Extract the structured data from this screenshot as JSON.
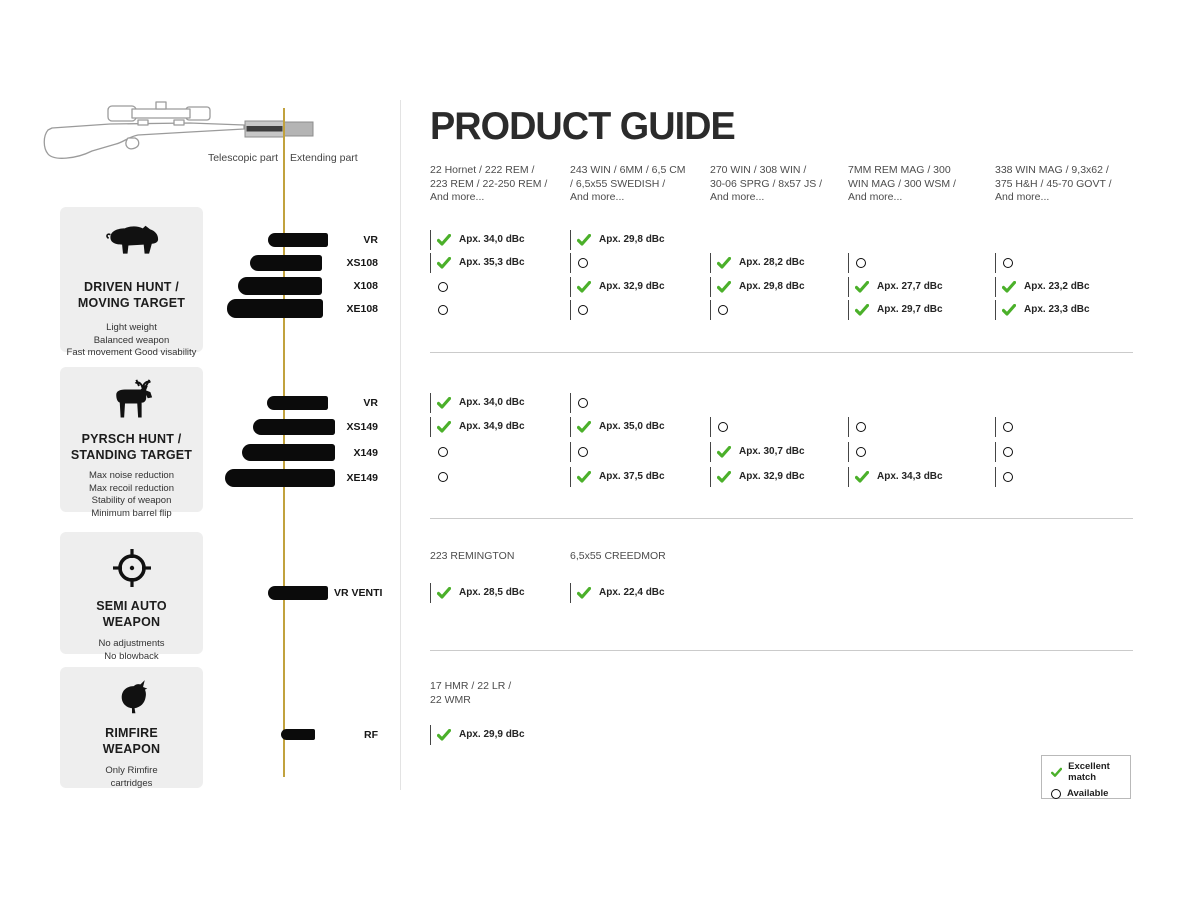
{
  "page": {
    "title": "PRODUCT GUIDE"
  },
  "colors": {
    "accent_green": "#4bb02a",
    "gold_line": "#c1a23e",
    "bar_black": "#0b0b0b",
    "card_bg": "#eeeeee"
  },
  "rifle": {
    "telescopic_label": "Telescopic part",
    "extending_label": "Extending part"
  },
  "cards": [
    {
      "icon": "boar-icon",
      "title": "DRIVEN HUNT /\nMOVING TARGET",
      "desc": "Light weight\nBalanced weapon\nFast movement Good visability"
    },
    {
      "icon": "moose-icon",
      "title": "PYRSCH HUNT /\nSTANDING TARGET",
      "desc": "Max noise reduction\nMax recoil reduction\nStability of weapon\nMinimum barrel flip"
    },
    {
      "icon": "crosshair-icon",
      "title": "SEMI AUTO\nWEAPON",
      "desc": "No adjustments\nNo blowback"
    },
    {
      "icon": "grouse-icon",
      "title": "RIMFIRE\nWEAPON",
      "desc": "Only Rimfire\ncartridges"
    }
  ],
  "table": {
    "caliber_headers": [
      "22 Hornet / 222 REM /\n223 REM / 22-250 REM /\nAnd more...",
      "243 WIN / 6MM / 6,5 CM\n/ 6,5x55 SWEDISH /\nAnd more...",
      "270 WIN / 308 WIN /\n30-06 SPRG / 8x57 JS /\nAnd more...",
      "7MM REM MAG / 300\nWIN MAG / 300 WSM /\nAnd more...",
      "338 WIN MAG / 9,3x62 /\n375 H&H / 45-70 GOVT /\nAnd more..."
    ],
    "sections": [
      {
        "models": [
          "VR",
          "XS108",
          "X108",
          "XE108"
        ],
        "cells": [
          [
            {
              "type": "check",
              "value": "Apx. 34,0 dBc"
            },
            {
              "type": "check",
              "value": "Apx. 35,3 dBc"
            },
            {
              "type": "circle",
              "value": ""
            },
            {
              "type": "circle",
              "value": ""
            }
          ],
          [
            {
              "type": "check",
              "value": "Apx. 29,8 dBc"
            },
            {
              "type": "circle",
              "value": ""
            },
            {
              "type": "check",
              "value": "Apx. 32,9 dBc"
            },
            {
              "type": "circle",
              "value": ""
            }
          ],
          [
            {
              "type": "none",
              "value": ""
            },
            {
              "type": "check",
              "value": "Apx. 28,2 dBc"
            },
            {
              "type": "check",
              "value": "Apx. 29,8 dBc"
            },
            {
              "type": "circle",
              "value": ""
            }
          ],
          [
            {
              "type": "none",
              "value": ""
            },
            {
              "type": "circle",
              "value": ""
            },
            {
              "type": "check",
              "value": "Apx. 27,7 dBc"
            },
            {
              "type": "check",
              "value": "Apx. 29,7 dBc"
            }
          ],
          [
            {
              "type": "none",
              "value": ""
            },
            {
              "type": "circle",
              "value": ""
            },
            {
              "type": "check",
              "value": "Apx. 23,2 dBc"
            },
            {
              "type": "check",
              "value": "Apx. 23,3 dBc"
            }
          ]
        ]
      },
      {
        "models": [
          "VR",
          "XS149",
          "X149",
          "XE149"
        ],
        "cells": [
          [
            {
              "type": "check",
              "value": "Apx. 34,0 dBc"
            },
            {
              "type": "check",
              "value": "Apx. 34,9 dBc"
            },
            {
              "type": "circle",
              "value": ""
            },
            {
              "type": "circle",
              "value": ""
            }
          ],
          [
            {
              "type": "circle",
              "value": ""
            },
            {
              "type": "check",
              "value": "Apx. 35,0 dBc"
            },
            {
              "type": "circle",
              "value": ""
            },
            {
              "type": "check",
              "value": "Apx. 37,5 dBc"
            }
          ],
          [
            {
              "type": "none",
              "value": ""
            },
            {
              "type": "circle",
              "value": ""
            },
            {
              "type": "check",
              "value": "Apx. 30,7 dBc"
            },
            {
              "type": "check",
              "value": "Apx. 32,9 dBc"
            }
          ],
          [
            {
              "type": "none",
              "value": ""
            },
            {
              "type": "circle",
              "value": ""
            },
            {
              "type": "circle",
              "value": ""
            },
            {
              "type": "check",
              "value": "Apx. 34,3 dBc"
            }
          ],
          [
            {
              "type": "none",
              "value": ""
            },
            {
              "type": "circle",
              "value": ""
            },
            {
              "type": "circle",
              "value": ""
            },
            {
              "type": "circle",
              "value": ""
            }
          ]
        ]
      },
      {
        "headers": [
          "223 REMINGTON",
          "6,5x55 CREEDMOR"
        ],
        "models": [
          "VR VENTI"
        ],
        "cells": [
          [
            {
              "type": "check",
              "value": "Apx. 28,5 dBc"
            }
          ],
          [
            {
              "type": "check",
              "value": "Apx. 22,4 dBc"
            }
          ]
        ]
      },
      {
        "headers": [
          "17 HMR / 22 LR /\n22 WMR"
        ],
        "models": [
          "RF"
        ],
        "cells": [
          [
            {
              "type": "check",
              "value": "Apx. 29,9 dBc"
            }
          ]
        ]
      }
    ]
  },
  "legend": {
    "excellent_label": "Excellent match",
    "available_label": "Available"
  }
}
